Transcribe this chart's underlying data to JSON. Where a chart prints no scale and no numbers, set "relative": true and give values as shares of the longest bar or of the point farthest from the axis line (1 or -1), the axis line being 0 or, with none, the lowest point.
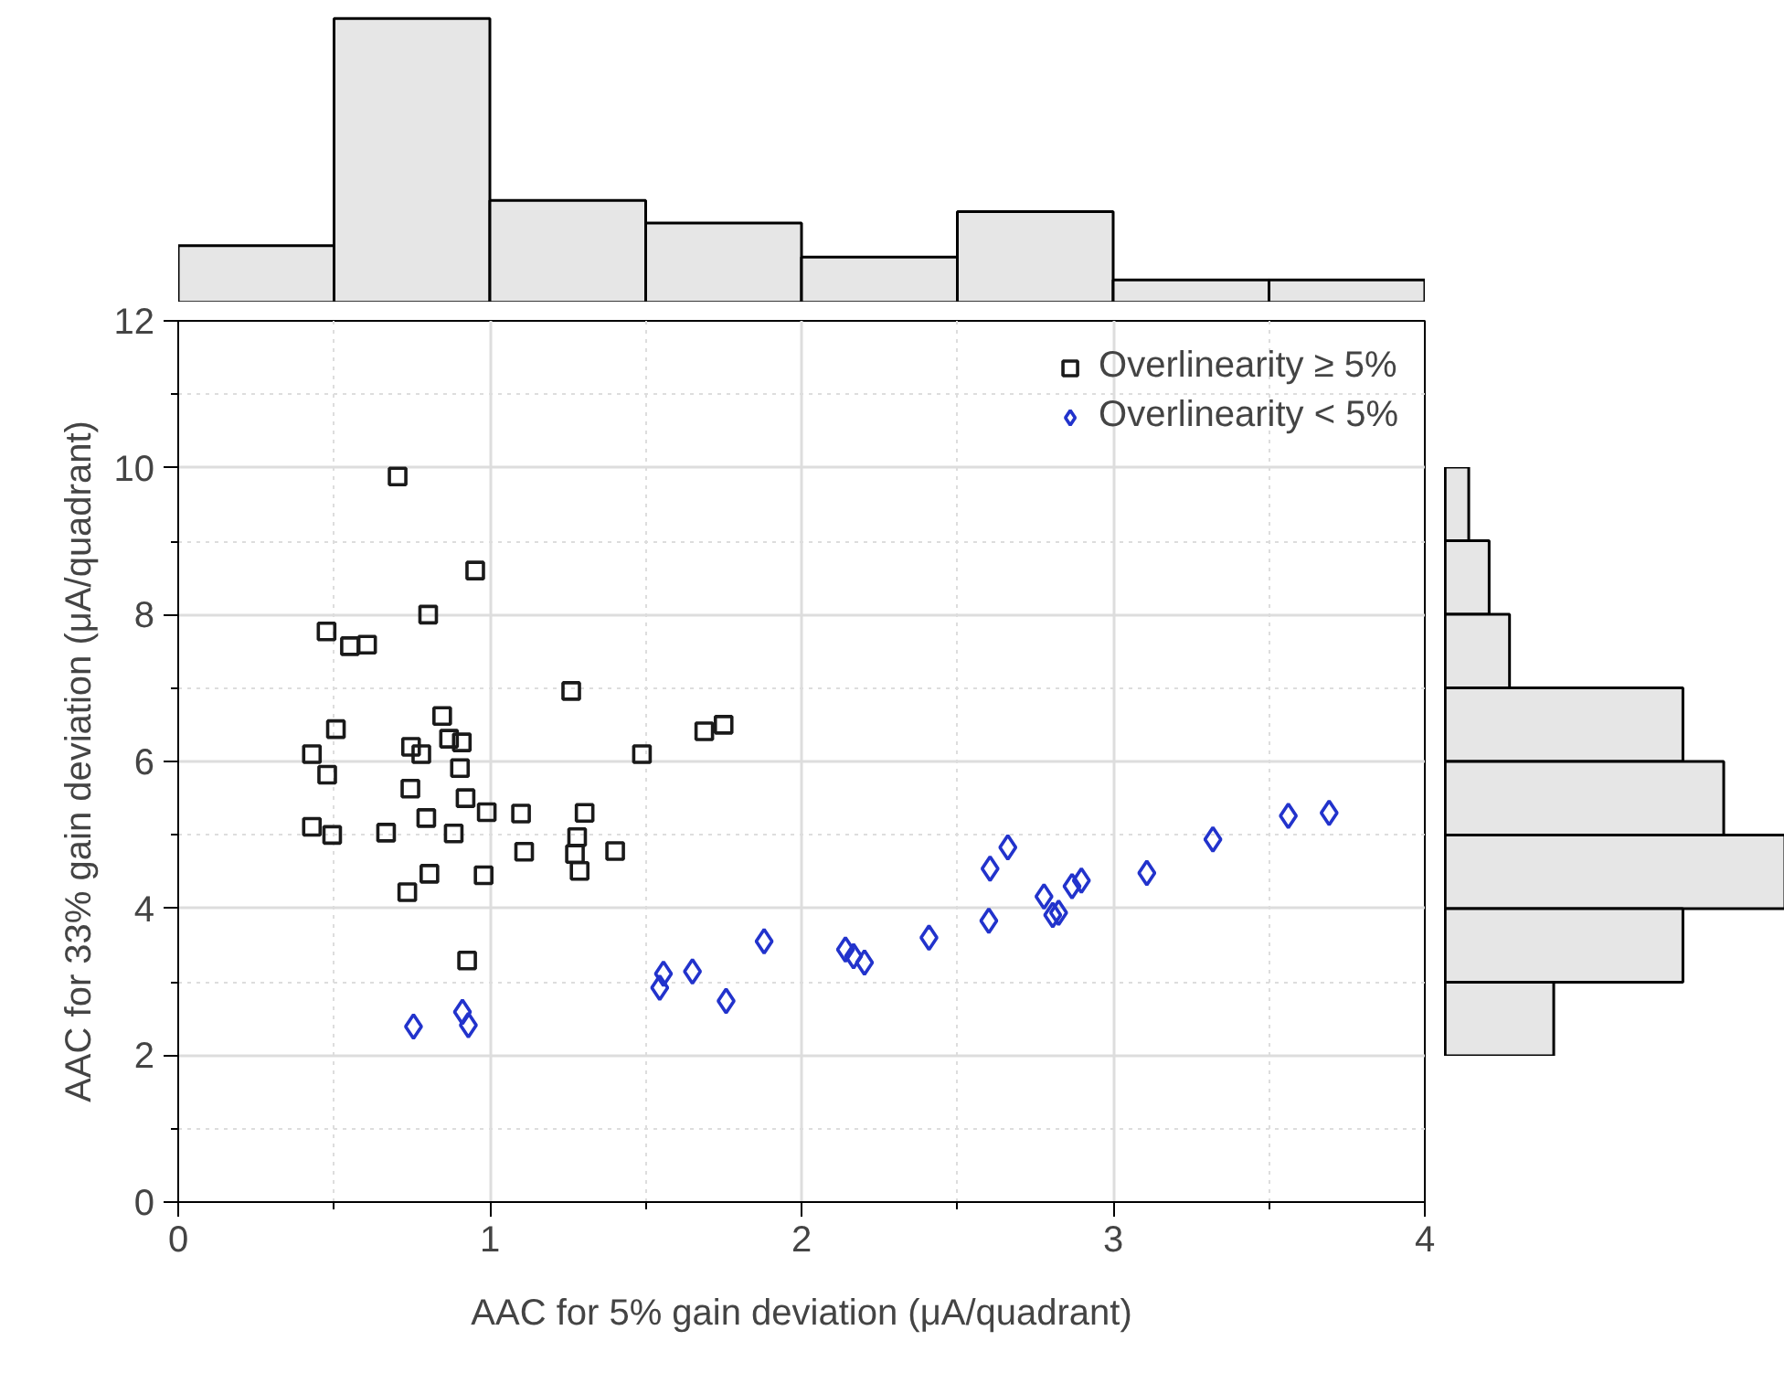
{
  "chart_data": [
    {
      "type": "scatter",
      "xlabel": "AAC for 5% gain deviation (μA/quadrant)",
      "ylabel": "AAC for 33% gain deviation (μA/quadrant)",
      "xlim": [
        0,
        4
      ],
      "ylim": [
        0,
        12
      ],
      "xticks": [
        0,
        {
          "value": 0.5,
          "label": null
        },
        1,
        {
          "value": 1.5,
          "label": null
        },
        2,
        {
          "value": 2.5,
          "label": null
        },
        3,
        {
          "value": 3.5,
          "label": null
        },
        4
      ],
      "yticks": [
        0,
        {
          "value": 1,
          "label": null
        },
        2,
        {
          "value": 3,
          "label": null
        },
        4,
        {
          "value": 5,
          "label": null
        },
        6,
        {
          "value": 7,
          "label": null
        },
        8,
        {
          "value": 9,
          "label": null
        },
        10,
        {
          "value": 11,
          "label": null
        },
        12
      ],
      "grid": true,
      "legend": "top right",
      "series": [
        {
          "name": "Overlinearity ≥ 5%",
          "color": "#1a1a1a",
          "marker": "square",
          "x": [
            0.704,
            0.953,
            0.802,
            0.476,
            0.551,
            0.606,
            1.261,
            0.847,
            0.506,
            0.747,
            0.78,
            0.869,
            0.91,
            0.429,
            1.488,
            1.688,
            1.75,
            0.904,
            0.478,
            0.745,
            0.922,
            0.99,
            1.1,
            1.304,
            0.796,
            0.429,
            0.494,
            0.667,
            0.884,
            1.28,
            1.11,
            1.273,
            1.402,
            1.288,
            0.806,
            0.98,
            0.735,
            0.927
          ],
          "values": [
            9.88,
            8.6,
            8.0,
            7.77,
            7.57,
            7.59,
            6.96,
            6.62,
            6.44,
            6.2,
            6.1,
            6.31,
            6.26,
            6.1,
            6.1,
            6.41,
            6.5,
            5.91,
            5.82,
            5.63,
            5.5,
            5.31,
            5.29,
            5.3,
            5.23,
            5.11,
            5.0,
            5.03,
            5.02,
            4.97,
            4.77,
            4.74,
            4.78,
            4.51,
            4.47,
            4.45,
            4.22,
            3.29
          ]
        },
        {
          "name": "Overlinearity < 5%",
          "color": "#2233cc",
          "marker": "diamond",
          "x": [
            0.755,
            0.912,
            0.931,
            1.545,
            1.557,
            1.65,
            1.758,
            1.88,
            2.141,
            2.167,
            2.202,
            2.409,
            2.601,
            2.605,
            2.662,
            2.778,
            2.806,
            2.825,
            2.868,
            2.898,
            3.108,
            3.32,
            3.562,
            3.693
          ],
          "values": [
            2.39,
            2.59,
            2.41,
            2.92,
            3.11,
            3.14,
            2.74,
            3.55,
            3.44,
            3.35,
            3.26,
            3.6,
            3.83,
            4.54,
            4.83,
            4.16,
            3.91,
            3.94,
            4.3,
            4.38,
            4.48,
            4.94,
            5.26,
            5.3
          ]
        }
      ]
    },
    {
      "type": "bar",
      "relative": true,
      "color": "#e6e6e6",
      "categories": [
        null,
        null,
        null,
        null,
        null,
        null,
        null,
        null
      ],
      "values": [
        0.2,
        1,
        0.36,
        0.28,
        0.16,
        0.32,
        0.08,
        0.08
      ]
    },
    {
      "type": "bar",
      "relative": true,
      "orientation": "horizontal",
      "color": "#e6e6e6",
      "categories": [
        null,
        null,
        null,
        null,
        null,
        null,
        null,
        null
      ],
      "values": [
        0.07,
        0.13,
        0.19,
        0.7,
        0.82,
        1,
        0.7,
        0.32
      ]
    }
  ]
}
